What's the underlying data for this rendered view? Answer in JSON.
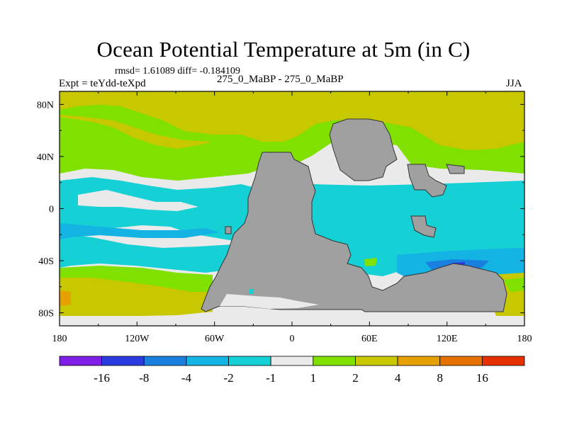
{
  "title": "Ocean Potential Temperature at 5m (in C)",
  "stats_line": "rmsd= 1.61089  diff= -0.184109",
  "experiment_label": "Expt = teYdd-teXpd",
  "center_label": "275_0_MaBP - 275_0_MaBP",
  "season": "JJA",
  "colors": {
    "land": "#a0a0a0",
    "c_m16_m8": "#7f1ee6",
    "c_m8_m4": "#2a3cdf",
    "c_m4_m2": "#1a80e0",
    "c_m2_m1": "#13b4e4",
    "c_m1_1": "#eaeaea",
    "c_1_2": "#80e000",
    "c_2_4": "#c8c800",
    "c_4_8": "#e6a000",
    "c_8_16": "#e67000",
    "c_16": "#e63000",
    "cyan": "#15d0d4"
  },
  "axes": {
    "lon_ticks": [
      {
        "value": -180,
        "label": "180"
      },
      {
        "value": -120,
        "label": "120W"
      },
      {
        "value": -60,
        "label": "60W"
      },
      {
        "value": 0,
        "label": "0"
      },
      {
        "value": 60,
        "label": "60E"
      },
      {
        "value": 120,
        "label": "120E"
      },
      {
        "value": 180,
        "label": "180"
      }
    ],
    "lat_ticks": [
      {
        "value": 80,
        "label": "80N"
      },
      {
        "value": 40,
        "label": "40N"
      },
      {
        "value": 0,
        "label": "0"
      },
      {
        "value": -40,
        "label": "40S"
      },
      {
        "value": -80,
        "label": "80S"
      }
    ]
  },
  "colorbar": {
    "boundaries": [
      "-16",
      "-8",
      "-4",
      "-2",
      "-1",
      "1",
      "2",
      "4",
      "8",
      "16"
    ],
    "colors": [
      "#7f1ee6",
      "#2a3cdf",
      "#1a80e0",
      "#13b4e4",
      "#15d0d4",
      "#eaeaea",
      "#80e000",
      "#c8c800",
      "#e6a000",
      "#e67000",
      "#e63000"
    ]
  }
}
